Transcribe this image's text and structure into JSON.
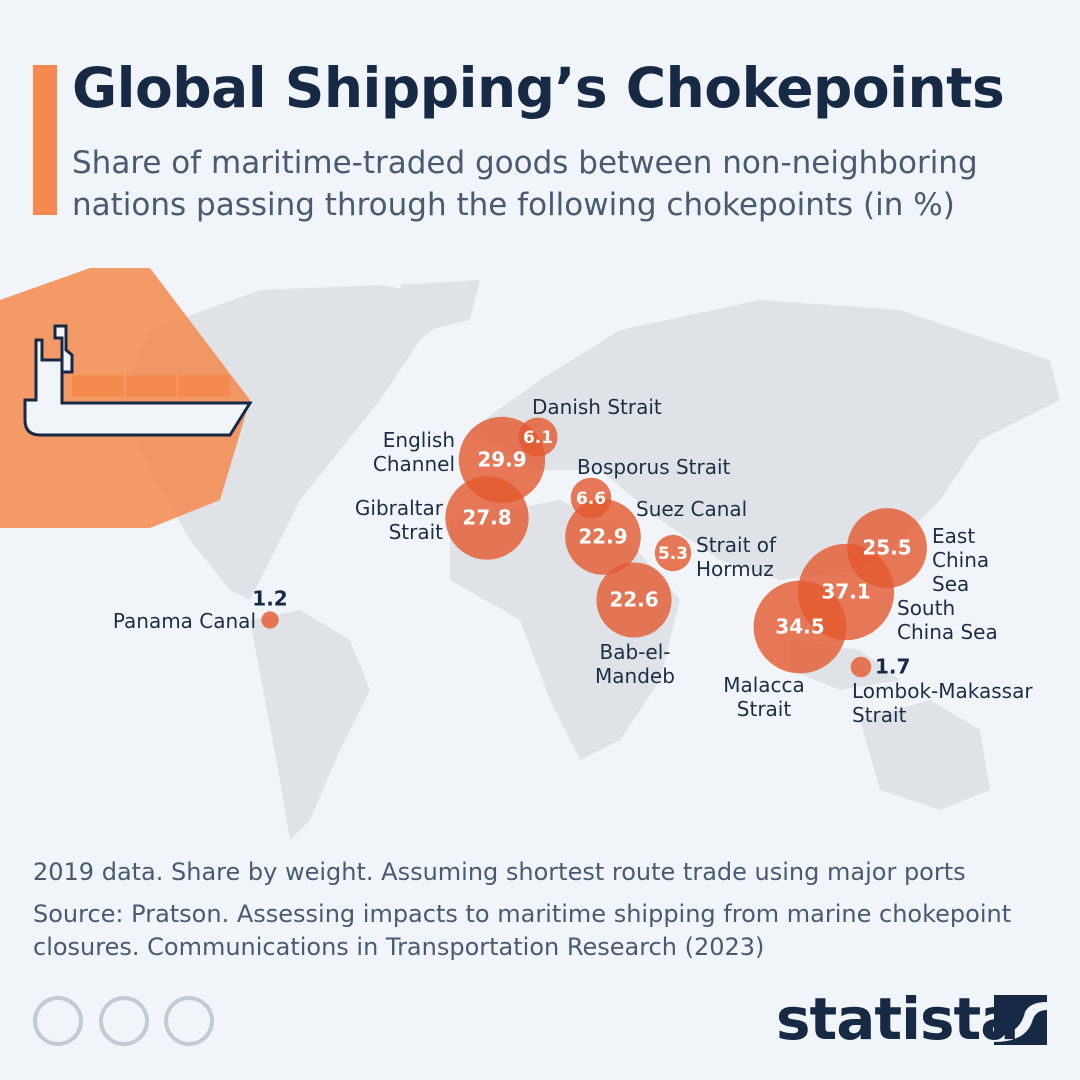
{
  "header": {
    "title": "Global Shipping’s Chokepoints",
    "subtitle": "Share of maritime-traded goods between non-neighboring nations passing through the following chokepoints (in %)"
  },
  "chart_data": {
    "type": "bubble_map",
    "color": "#e4572e",
    "categories": [
      "English Channel",
      "Danish Strait",
      "Gibraltar Strait",
      "Bosporus Strait",
      "Suez Canal",
      "Strait of Hormuz",
      "Bab-el-Mandeb",
      "East China Sea",
      "South China Sea",
      "Malacca Strait",
      "Lombok-Makassar Strait",
      "Panama Canal"
    ],
    "values": [
      29.9,
      6.1,
      27.8,
      6.6,
      22.9,
      5.3,
      22.6,
      25.5,
      37.1,
      34.5,
      1.7,
      1.2
    ]
  },
  "footer": {
    "note": "2019 data. Share by weight. Assuming shortest route trade using major ports",
    "source": "Source: Pratson. Assessing impacts to maritime shipping from marine chokepoint closures. Communications in Transportation Research (2023)",
    "brand": "statista"
  }
}
